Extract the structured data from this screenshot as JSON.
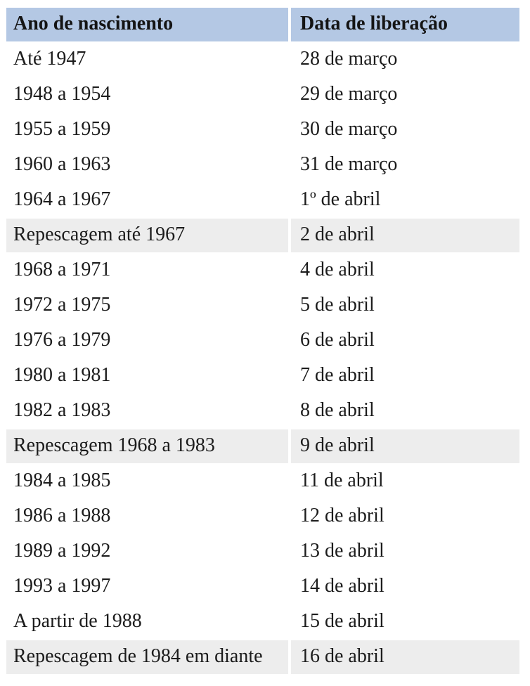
{
  "chart_data": {
    "type": "table",
    "title": "",
    "columns": [
      "Ano de nascimento",
      "Data de liberação"
    ],
    "rows": [
      [
        "Até 1947",
        "28 de março"
      ],
      [
        "1948 a 1954",
        "29 de março"
      ],
      [
        "1955 a 1959",
        "30 de março"
      ],
      [
        "1960 a 1963",
        "31 de março"
      ],
      [
        "1964 a 1967",
        "1º de abril"
      ],
      [
        "Repescagem até 1967",
        "2 de abril"
      ],
      [
        "1968 a 1971",
        "4 de abril"
      ],
      [
        "1972 a 1975",
        "5 de abril"
      ],
      [
        "1976 a 1979",
        "6 de abril"
      ],
      [
        "1980 a 1981",
        "7 de abril"
      ],
      [
        "1982 a 1983",
        "8 de abril"
      ],
      [
        "Repescagem 1968 a 1983",
        "9 de abril"
      ],
      [
        "1984 a 1985",
        "11 de abril"
      ],
      [
        "1986 a 1988",
        "12 de abril"
      ],
      [
        "1989 a 1992",
        "13 de abril"
      ],
      [
        "1993 a 1997",
        "14 de abril"
      ],
      [
        "A partir de 1988",
        "15 de abril"
      ],
      [
        "Repescagem de 1984 em diante",
        "16 de abril"
      ]
    ],
    "highlighted_rows": [
      5,
      11,
      17
    ],
    "layout": {
      "header_position": "top",
      "grid": "off",
      "column_alignment": [
        "left",
        "left"
      ]
    }
  },
  "colors": {
    "header_bg": "#b4c8e4",
    "highlight_row_bg": "#ededed",
    "row_bg": "#ffffff",
    "text": "#1c1c1c"
  }
}
